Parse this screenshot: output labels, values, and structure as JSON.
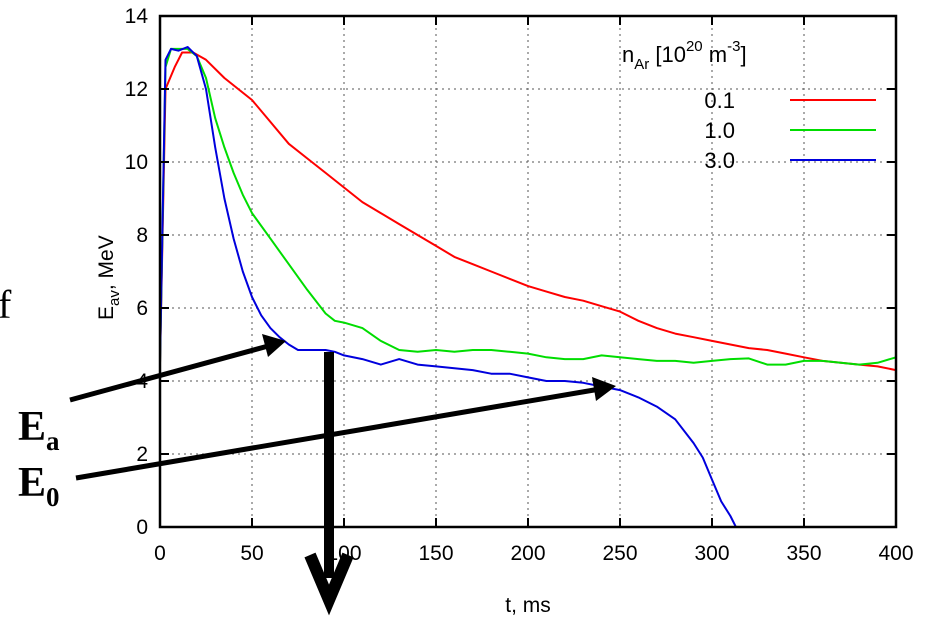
{
  "chart_data": {
    "type": "line",
    "xlabel": "t, ms",
    "ylabel_main": "E",
    "ylabel_sub": "av",
    "ylabel_rest": ", MeV",
    "ylabel_left_fragment": "of",
    "xlim": [
      0,
      400
    ],
    "ylim": [
      0,
      14
    ],
    "xticks": [
      "0",
      "50",
      "100",
      "150",
      "200",
      "250",
      "300",
      "350",
      "400"
    ],
    "xtick_values": [
      0,
      50,
      100,
      150,
      200,
      250,
      300,
      350,
      400
    ],
    "yticks": [
      "0",
      "2",
      "4",
      "6",
      "8",
      "10",
      "12",
      "14"
    ],
    "ytick_values": [
      0,
      2,
      4,
      6,
      8,
      10,
      12,
      14
    ],
    "grid": true,
    "legend": {
      "placement": "top-right",
      "title_main": "n",
      "title_sub": "Ar",
      "title_mid": " [10",
      "title_exp": "20",
      "title_unit": " m",
      "title_unit_exp": "-3",
      "title_close": "]"
    },
    "series": [
      {
        "name": "0.1",
        "color": "#ff0000",
        "x": [
          0,
          3,
          8,
          12,
          18,
          25,
          35,
          50,
          60,
          70,
          80,
          90,
          100,
          110,
          120,
          130,
          140,
          150,
          160,
          170,
          180,
          190,
          200,
          210,
          220,
          230,
          240,
          250,
          260,
          270,
          280,
          290,
          300,
          310,
          320,
          330,
          340,
          350,
          360,
          370,
          380,
          390,
          400
        ],
        "y": [
          4.5,
          12.0,
          12.6,
          13.0,
          13.0,
          12.8,
          12.3,
          11.7,
          11.1,
          10.5,
          10.1,
          9.7,
          9.3,
          8.9,
          8.6,
          8.3,
          8.0,
          7.7,
          7.4,
          7.2,
          7.0,
          6.8,
          6.6,
          6.45,
          6.3,
          6.2,
          6.05,
          5.9,
          5.65,
          5.45,
          5.3,
          5.2,
          5.1,
          5.0,
          4.9,
          4.85,
          4.75,
          4.65,
          4.55,
          4.5,
          4.45,
          4.4,
          4.3
        ]
      },
      {
        "name": "1.0",
        "color": "#00dd00",
        "x": [
          0,
          3,
          6,
          10,
          15,
          20,
          25,
          30,
          35,
          40,
          45,
          50,
          60,
          70,
          80,
          90,
          95,
          100,
          110,
          120,
          130,
          140,
          150,
          160,
          170,
          180,
          190,
          200,
          210,
          220,
          230,
          240,
          250,
          260,
          270,
          280,
          290,
          300,
          310,
          320,
          330,
          340,
          350,
          360,
          370,
          380,
          390,
          400
        ],
        "y": [
          4.5,
          12.6,
          13.1,
          13.1,
          13.1,
          12.9,
          12.3,
          11.2,
          10.4,
          9.7,
          9.1,
          8.6,
          7.9,
          7.2,
          6.5,
          5.85,
          5.65,
          5.6,
          5.45,
          5.1,
          4.85,
          4.8,
          4.85,
          4.8,
          4.85,
          4.85,
          4.8,
          4.75,
          4.65,
          4.6,
          4.6,
          4.7,
          4.65,
          4.6,
          4.55,
          4.55,
          4.5,
          4.55,
          4.6,
          4.62,
          4.45,
          4.45,
          4.55,
          4.55,
          4.5,
          4.45,
          4.5,
          4.65
        ]
      },
      {
        "name": "3.0",
        "color": "#0000dd",
        "x": [
          0,
          3,
          6,
          10,
          15,
          20,
          25,
          30,
          35,
          40,
          45,
          50,
          55,
          60,
          65,
          70,
          75,
          80,
          85,
          90,
          95,
          100,
          110,
          120,
          130,
          140,
          150,
          160,
          170,
          180,
          190,
          200,
          210,
          220,
          230,
          240,
          250,
          260,
          270,
          280,
          290,
          295,
          300,
          305,
          310,
          313
        ],
        "y": [
          4.5,
          12.8,
          13.1,
          13.05,
          13.15,
          12.9,
          12.0,
          10.4,
          9.0,
          7.9,
          7.0,
          6.3,
          5.8,
          5.45,
          5.2,
          5.0,
          4.85,
          4.85,
          4.85,
          4.85,
          4.8,
          4.7,
          4.6,
          4.45,
          4.6,
          4.45,
          4.4,
          4.35,
          4.3,
          4.2,
          4.2,
          4.1,
          4.0,
          4.0,
          3.95,
          3.85,
          3.75,
          3.55,
          3.3,
          2.95,
          2.3,
          1.9,
          1.3,
          0.7,
          0.3,
          0.0
        ]
      }
    ],
    "annotations": [
      {
        "label_main": "E",
        "label_sub": "a"
      },
      {
        "label_main": "E",
        "label_sub": "0"
      }
    ]
  }
}
